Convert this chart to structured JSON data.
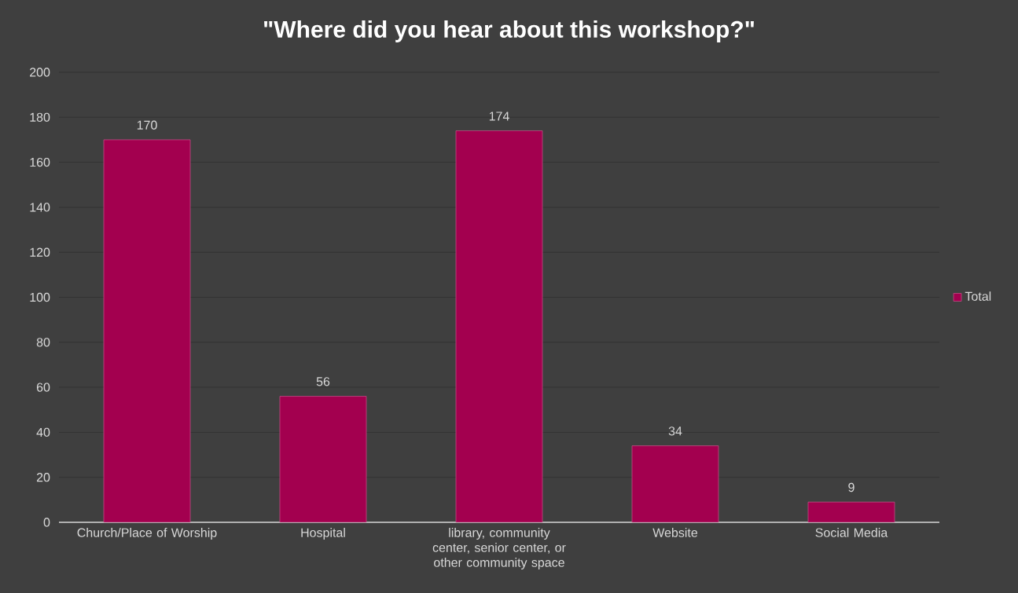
{
  "chart_data": {
    "type": "bar",
    "title": "\"Where did you hear about this workshop?\"",
    "categories": [
      "Church/Place of Worship",
      "Hospital",
      "library, community center, senior center, or other community space",
      "Website",
      "Social Media"
    ],
    "series": [
      {
        "name": "Total",
        "color": "#a3004f",
        "values": [
          170,
          56,
          174,
          34,
          9
        ]
      }
    ],
    "ylim": [
      0,
      200
    ],
    "yticks": [
      0,
      20,
      40,
      60,
      80,
      100,
      120,
      140,
      160,
      180,
      200
    ],
    "grid": "y",
    "legend": "right",
    "data_labels": true
  }
}
